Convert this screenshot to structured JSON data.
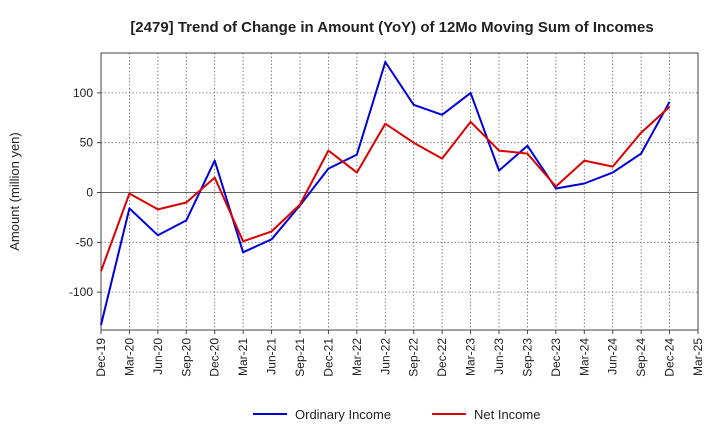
{
  "chart_data": {
    "type": "line",
    "title": "[2479]  Trend of Change in Amount (YoY) of 12Mo Moving Sum of Incomes",
    "xlabel": "",
    "ylabel": "Amount (million yen)",
    "ylim": [
      -138,
      140
    ],
    "yticks": [
      100,
      50,
      0,
      -50,
      -100
    ],
    "ytick_labels": [
      "100",
      "50",
      "0",
      "-50",
      "-100"
    ],
    "categories": [
      "Dec-19",
      "Mar-20",
      "Jun-20",
      "Sep-20",
      "Dec-20",
      "Mar-21",
      "Jun-21",
      "Sep-21",
      "Dec-21",
      "Mar-22",
      "Jun-22",
      "Sep-22",
      "Dec-22",
      "Mar-23",
      "Jun-23",
      "Sep-23",
      "Dec-23",
      "Mar-24",
      "Jun-24",
      "Sep-24",
      "Dec-24",
      "Mar-25"
    ],
    "grid": true,
    "legend_position": "bottom-center",
    "series": [
      {
        "name": "Ordinary Income",
        "color": "#0000dd",
        "values": [
          -133,
          -16,
          -43,
          -28,
          32,
          -60,
          -47,
          -13,
          24,
          38,
          131,
          88,
          78,
          100,
          22,
          47,
          4,
          9,
          20,
          39,
          91,
          null
        ]
      },
      {
        "name": "Net Income",
        "color": "#dd0000",
        "values": [
          -79,
          -1,
          -17,
          -10,
          15,
          -49,
          -39,
          -12,
          42,
          20,
          69,
          50,
          34,
          71,
          42,
          39,
          6,
          32,
          26,
          60,
          86,
          null
        ]
      }
    ]
  }
}
